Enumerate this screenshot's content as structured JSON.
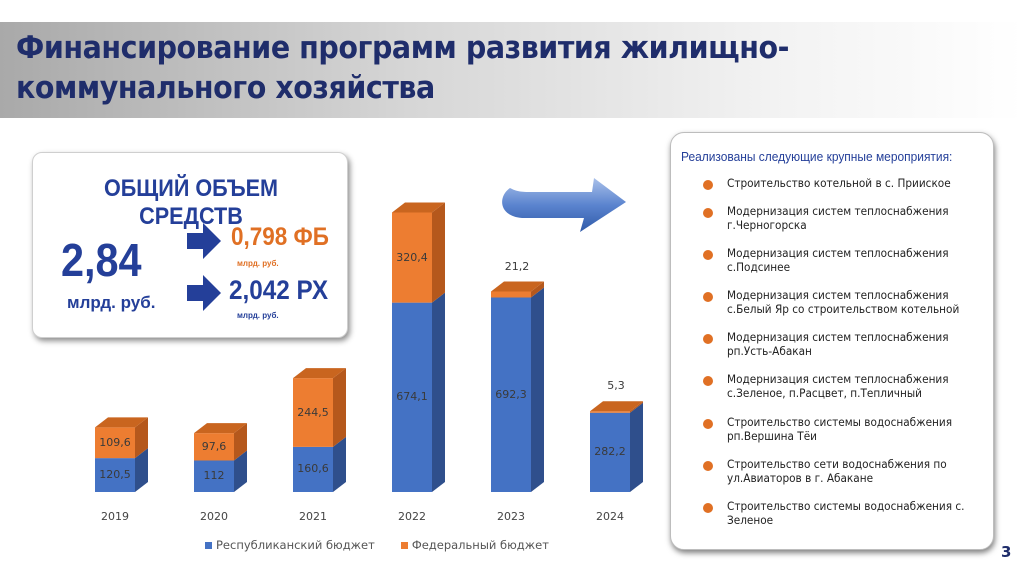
{
  "header": {
    "title": "Финансирование программ развития жилищно-коммунального хозяйства"
  },
  "summary": {
    "heading": "ОБЩИЙ ОБЪЕМ СРЕДСТВ",
    "total_value": "2,84",
    "total_unit": "млрд. руб.",
    "federal": {
      "value": "0,798 ФБ",
      "unit": "млрд. руб.",
      "color": "#e07024"
    },
    "republic": {
      "value": "2,042  РХ",
      "unit": "млрд. руб.",
      "color": "#243f99"
    }
  },
  "chart_data": {
    "type": "bar",
    "stacked": true,
    "style": "3d-column",
    "title": "",
    "xlabel": "",
    "ylabel": "",
    "categories": [
      "2019",
      "2020",
      "2021",
      "2022",
      "2023",
      "2024"
    ],
    "series": [
      {
        "name": "Республиканский бюджет",
        "color": "#4472c4",
        "values": [
          120.5,
          112,
          160.6,
          674.1,
          692.3,
          282.2
        ],
        "labels": [
          "120,5",
          "112",
          "160,6",
          "674,1",
          "692,3",
          "282,2"
        ]
      },
      {
        "name": "Федеральный бюджет",
        "color": "#ed7d31",
        "values": [
          109.6,
          97.6,
          244.5,
          320.4,
          21.2,
          5.3
        ],
        "labels": [
          "109,6",
          "97,6",
          "244,5",
          "320,4",
          "21,2",
          "5,3"
        ]
      }
    ],
    "grid": false,
    "legend_position": "bottom"
  },
  "events": {
    "heading": "Реализованы следующие крупные мероприятия:",
    "items": [
      "Строительство котельной в с. Прииское",
      "Модернизация систем теплоснабжения\nг.Черногорска",
      "Модернизация систем теплоснабжения\nс.Подсинее",
      "Модернизация систем теплоснабжения\nс.Белый Яр со строительством котельной",
      "Модернизация систем теплоснабжения\nрп.Усть-Абакан",
      "Модернизация систем теплоснабжения\nс.Зеленое, п.Расцвет, п.Тепличный",
      "Строительство системы водоснабжения\nрп.Вершина Тёи",
      "Строительство сети водоснабжения по\nул.Авиаторов в г. Абакане",
      "Строительство системы водоснабжения с.\nЗеленое"
    ]
  },
  "page_number": "3"
}
